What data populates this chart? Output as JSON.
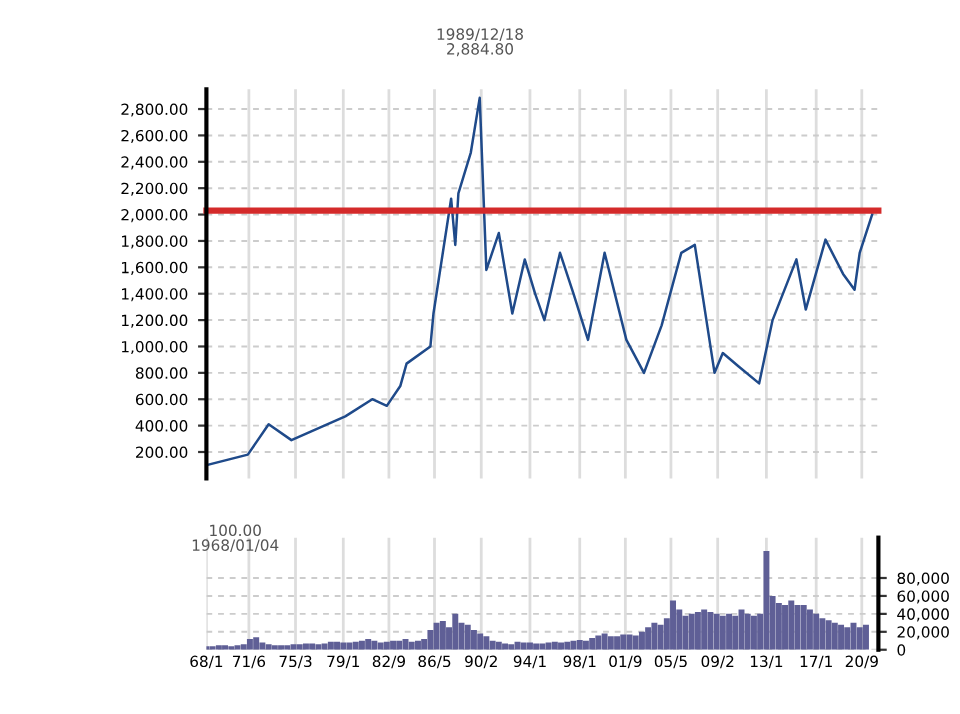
{
  "chart_data": [
    {
      "type": "line",
      "x": [
        "1968-01-04",
        "1971-05",
        "1973-01",
        "1974-11",
        "1979-03",
        "1981-05",
        "1982-07",
        "1983-08",
        "1984-02",
        "1986-01",
        "1986-04",
        "1987-09",
        "1988-01",
        "1988-04",
        "1989-04",
        "1989-12-18",
        "1990-07",
        "1991-07",
        "1992-08",
        "1993-08",
        "1994-06",
        "1995-03",
        "1996-06",
        "1997-07",
        "1998-09",
        "2000-01",
        "2001-10",
        "2003-03",
        "2004-08",
        "2006-03",
        "2007-04",
        "2008-11",
        "2009-07",
        "2010-10",
        "2012-06",
        "2013-07",
        "2015-06",
        "2016-03",
        "2017-10",
        "2019-03",
        "2020-02",
        "2020-07",
        "2021-07"
      ],
      "series": [
        {
          "color": "#1f4a8a",
          "values": [
            100,
            180,
            410,
            290,
            470,
            600,
            550,
            700,
            870,
            1000,
            1250,
            2120,
            1770,
            2160,
            2470,
            2884.8,
            1580,
            1860,
            1250,
            1660,
            1400,
            1200,
            1710,
            1400,
            1050,
            1710,
            1050,
            800,
            1160,
            1710,
            1770,
            800,
            950,
            850,
            720,
            1200,
            1660,
            1280,
            1810,
            1550,
            1430,
            1710,
            2000
          ]
        }
      ],
      "xlim": [
        "1968-01",
        "2022-01"
      ],
      "xticks": [
        {
          "value": "1968-01",
          "label": null
        },
        {
          "value": "1971-06",
          "label": null
        },
        {
          "value": "1975-03",
          "label": null
        },
        {
          "value": "1979-01",
          "label": null
        },
        {
          "value": "1982-09",
          "label": null
        },
        {
          "value": "1986-05",
          "label": null
        },
        {
          "value": "1990-02",
          "label": null
        },
        {
          "value": "1994-01",
          "label": null
        },
        {
          "value": "1998-01",
          "label": null
        },
        {
          "value": "2001-09",
          "label": null
        },
        {
          "value": "2005-05",
          "label": null
        },
        {
          "value": "2009-02",
          "label": null
        },
        {
          "value": "2013-01",
          "label": null
        },
        {
          "value": "2017-01",
          "label": null
        },
        {
          "value": "2020-09",
          "label": null
        }
      ],
      "ylim": [
        0,
        2950
      ],
      "yticks": [
        {
          "value": 200,
          "label": "200.00"
        },
        {
          "value": 400,
          "label": "400.00"
        },
        {
          "value": 600,
          "label": "600.00"
        },
        {
          "value": 800,
          "label": "800.00"
        },
        {
          "value": 1000,
          "label": "1,000.00"
        },
        {
          "value": 1200,
          "label": "1,200.00"
        },
        {
          "value": 1400,
          "label": "1,400.00"
        },
        {
          "value": 1600,
          "label": "1,600.00"
        },
        {
          "value": 1800,
          "label": "1,800.00"
        },
        {
          "value": 2000,
          "label": "2,000.00"
        },
        {
          "value": 2200,
          "label": "2,200.00"
        },
        {
          "value": 2400,
          "label": "2,400.00"
        },
        {
          "value": 2600,
          "label": "2,600.00"
        },
        {
          "value": 2800,
          "label": "2,800.00"
        }
      ],
      "ref_lines": [
        {
          "axis": "y",
          "value": 2030,
          "color": "#d42a2a"
        }
      ],
      "annotations": [
        "1989/12/18\n2,884.80",
        "100.00\n1968/01/04"
      ],
      "grid": true,
      "tick_labels": "y",
      "line_style": "solid",
      "marker": "none"
    },
    {
      "type": "bar",
      "x": [
        "1968-01",
        "1968-07",
        "1969-01",
        "1969-07",
        "1970-01",
        "1970-07",
        "1971-01",
        "1971-07",
        "1972-01",
        "1972-07",
        "1973-01",
        "1973-07",
        "1974-01",
        "1974-07",
        "1975-01",
        "1975-07",
        "1976-01",
        "1976-07",
        "1977-01",
        "1977-07",
        "1978-01",
        "1978-07",
        "1979-01",
        "1979-07",
        "1980-01",
        "1980-07",
        "1981-01",
        "1981-07",
        "1982-01",
        "1982-07",
        "1983-01",
        "1983-07",
        "1984-01",
        "1984-07",
        "1985-01",
        "1985-07",
        "1986-01",
        "1986-07",
        "1987-01",
        "1987-07",
        "1988-01",
        "1988-07",
        "1989-01",
        "1989-07",
        "1990-01",
        "1990-07",
        "1991-01",
        "1991-07",
        "1992-01",
        "1992-07",
        "1993-01",
        "1993-07",
        "1994-01",
        "1994-07",
        "1995-01",
        "1995-07",
        "1996-01",
        "1996-07",
        "1997-01",
        "1997-07",
        "1998-01",
        "1998-07",
        "1999-01",
        "1999-07",
        "2000-01",
        "2000-07",
        "2001-01",
        "2001-07",
        "2002-01",
        "2002-07",
        "2003-01",
        "2003-07",
        "2004-01",
        "2004-07",
        "2005-01",
        "2005-07",
        "2006-01",
        "2006-07",
        "2007-01",
        "2007-07",
        "2008-01",
        "2008-07",
        "2009-01",
        "2009-07",
        "2010-01",
        "2010-07",
        "2011-01",
        "2011-07",
        "2012-01",
        "2012-07",
        "2013-01",
        "2013-07",
        "2014-01",
        "2014-07",
        "2015-01",
        "2015-07",
        "2016-01",
        "2016-07",
        "2017-01",
        "2017-07",
        "2018-01",
        "2018-07",
        "2019-01",
        "2019-07",
        "2020-01",
        "2020-07",
        "2021-01"
      ],
      "series": [
        {
          "color": "#5f5f96",
          "values": [
            4000,
            4000,
            5000,
            5000,
            4000,
            5000,
            6000,
            12000,
            14000,
            8000,
            6000,
            5000,
            5000,
            5000,
            6000,
            6000,
            7000,
            7000,
            6000,
            7000,
            9000,
            9000,
            8000,
            8000,
            9000,
            10000,
            12000,
            10000,
            8000,
            9000,
            10000,
            10000,
            12000,
            9000,
            10000,
            12000,
            22000,
            30000,
            32000,
            25000,
            40000,
            30000,
            28000,
            22000,
            18000,
            15000,
            10000,
            9000,
            7000,
            6000,
            9000,
            8000,
            8000,
            7000,
            7000,
            8000,
            9000,
            8000,
            9000,
            10000,
            11000,
            10000,
            13000,
            16000,
            18000,
            15000,
            15000,
            17000,
            17000,
            16000,
            20000,
            25000,
            30000,
            28000,
            35000,
            55000,
            45000,
            38000,
            40000,
            42000,
            45000,
            42000,
            40000,
            38000,
            40000,
            38000,
            45000,
            40000,
            38000,
            40000,
            110000,
            60000,
            52000,
            50000,
            55000,
            50000,
            50000,
            45000,
            40000,
            35000,
            33000,
            30000,
            28000,
            25000,
            30000,
            25000,
            28000
          ]
        }
      ],
      "xlim": [
        "1968-01",
        "2022-01"
      ],
      "xticks": [
        {
          "value": "1968-01",
          "label": "68/1"
        },
        {
          "value": "1971-06",
          "label": "71/6"
        },
        {
          "value": "1975-03",
          "label": "75/3"
        },
        {
          "value": "1979-01",
          "label": "79/1"
        },
        {
          "value": "1982-09",
          "label": "82/9"
        },
        {
          "value": "1986-05",
          "label": "86/5"
        },
        {
          "value": "1990-02",
          "label": "90/2"
        },
        {
          "value": "1994-01",
          "label": "94/1"
        },
        {
          "value": "1998-01",
          "label": "98/1"
        },
        {
          "value": "2001-09",
          "label": "01/9"
        },
        {
          "value": "2005-05",
          "label": "05/5"
        },
        {
          "value": "2009-02",
          "label": "09/2"
        },
        {
          "value": "2013-01",
          "label": "13/1"
        },
        {
          "value": "2017-01",
          "label": "17/1"
        },
        {
          "value": "2020-09",
          "label": "20/9"
        }
      ],
      "ylim": [
        0,
        125000
      ],
      "yticks": [
        0,
        {
          "value": 20000,
          "label": "20,000"
        },
        {
          "value": 40000,
          "label": "40,000"
        },
        {
          "value": 60000,
          "label": "60,000"
        },
        {
          "value": 80000,
          "label": "80,000"
        }
      ],
      "grid": true
    }
  ]
}
